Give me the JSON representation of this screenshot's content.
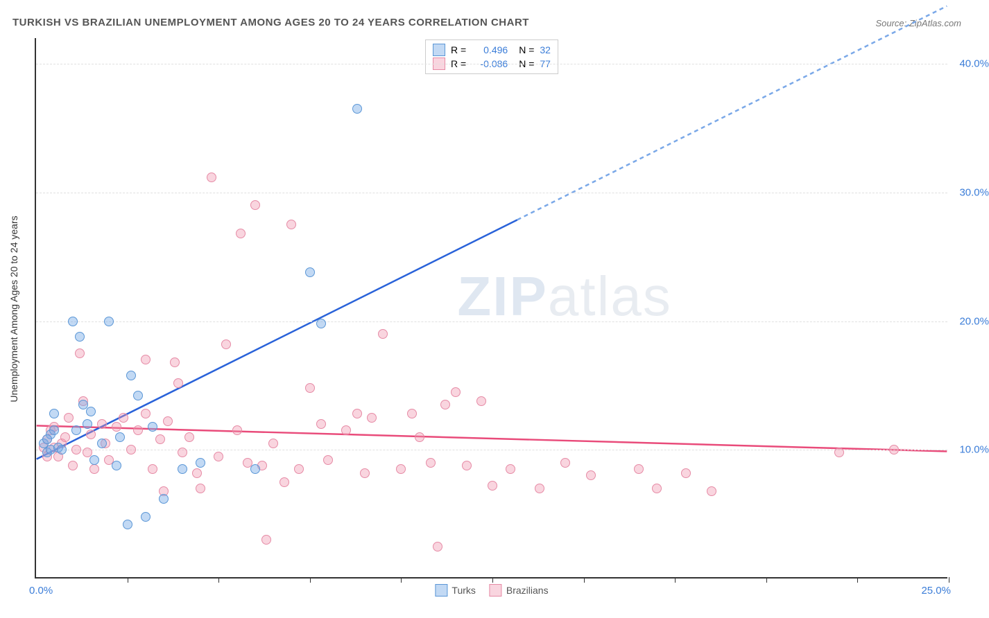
{
  "title": "TURKISH VS BRAZILIAN UNEMPLOYMENT AMONG AGES 20 TO 24 YEARS CORRELATION CHART",
  "source": "Source: ZipAtlas.com",
  "y_axis_title": "Unemployment Among Ages 20 to 24 years",
  "watermark_bold": "ZIP",
  "watermark_light": "atlas",
  "chart": {
    "type": "scatter",
    "background_color": "#ffffff",
    "grid_color": "#e0e0e0",
    "axis_color": "#333333",
    "xlim": [
      0,
      25
    ],
    "ylim": [
      0,
      42
    ],
    "x_ticks": [
      0,
      2.5,
      5,
      7.5,
      10,
      12.5,
      15,
      17.5,
      20,
      22.5,
      25
    ],
    "y_gridlines": [
      10,
      20,
      30,
      40
    ],
    "y_tick_labels": [
      "10.0%",
      "20.0%",
      "30.0%",
      "40.0%"
    ],
    "x_label_min": "0.0%",
    "x_label_max": "25.0%",
    "label_color": "#3b7dd8",
    "label_fontsize": 15
  },
  "series": {
    "turks": {
      "label": "Turks",
      "fill_color": "rgba(120,170,230,0.45)",
      "stroke_color": "#5a96d6",
      "trend_color": "#2962d9",
      "trend_dash_color": "#7aa8e8",
      "R": "0.496",
      "N": "32",
      "trend": {
        "x1": 0,
        "y1": 9.2,
        "x2": 25,
        "y2": 44.5,
        "solid_until_x": 13.2
      },
      "points": [
        [
          0.2,
          10.5
        ],
        [
          0.3,
          9.8
        ],
        [
          0.4,
          11.2
        ],
        [
          0.4,
          10.0
        ],
        [
          0.5,
          12.8
        ],
        [
          0.6,
          10.2
        ],
        [
          1.0,
          20.0
        ],
        [
          1.1,
          11.5
        ],
        [
          1.2,
          18.8
        ],
        [
          1.3,
          13.5
        ],
        [
          1.5,
          13.0
        ],
        [
          1.6,
          9.2
        ],
        [
          1.8,
          10.5
        ],
        [
          2.0,
          20.0
        ],
        [
          2.2,
          8.8
        ],
        [
          2.3,
          11.0
        ],
        [
          2.5,
          4.2
        ],
        [
          2.6,
          15.8
        ],
        [
          2.8,
          14.2
        ],
        [
          3.0,
          4.8
        ],
        [
          3.2,
          11.8
        ],
        [
          3.5,
          6.2
        ],
        [
          4.0,
          8.5
        ],
        [
          4.5,
          9.0
        ],
        [
          6.0,
          8.5
        ],
        [
          7.5,
          23.8
        ],
        [
          7.8,
          19.8
        ],
        [
          8.8,
          36.5
        ],
        [
          0.3,
          10.8
        ],
        [
          0.5,
          11.5
        ],
        [
          0.7,
          10.0
        ],
        [
          1.4,
          12.0
        ]
      ]
    },
    "brazilians": {
      "label": "Brazilians",
      "fill_color": "rgba(240,150,175,0.40)",
      "stroke_color": "#e68aa5",
      "trend_color": "#e94b7a",
      "R": "-0.086",
      "N": "77",
      "trend": {
        "x1": 0,
        "y1": 11.8,
        "x2": 25,
        "y2": 9.8
      },
      "points": [
        [
          0.2,
          10.2
        ],
        [
          0.3,
          10.8
        ],
        [
          0.3,
          9.5
        ],
        [
          0.4,
          11.5
        ],
        [
          0.5,
          10.2
        ],
        [
          0.5,
          11.8
        ],
        [
          0.6,
          9.5
        ],
        [
          0.7,
          10.5
        ],
        [
          0.8,
          11.0
        ],
        [
          0.9,
          12.5
        ],
        [
          1.0,
          8.8
        ],
        [
          1.1,
          10.0
        ],
        [
          1.2,
          17.5
        ],
        [
          1.3,
          13.8
        ],
        [
          1.4,
          9.8
        ],
        [
          1.5,
          11.2
        ],
        [
          1.6,
          8.5
        ],
        [
          1.8,
          12.0
        ],
        [
          1.9,
          10.5
        ],
        [
          2.0,
          9.2
        ],
        [
          2.2,
          11.8
        ],
        [
          2.4,
          12.5
        ],
        [
          2.6,
          10.0
        ],
        [
          2.8,
          11.5
        ],
        [
          3.0,
          17.0
        ],
        [
          3.0,
          12.8
        ],
        [
          3.2,
          8.5
        ],
        [
          3.4,
          10.8
        ],
        [
          3.5,
          6.8
        ],
        [
          3.6,
          12.2
        ],
        [
          3.8,
          16.8
        ],
        [
          3.9,
          15.2
        ],
        [
          4.0,
          9.8
        ],
        [
          4.2,
          11.0
        ],
        [
          4.4,
          8.2
        ],
        [
          4.5,
          7.0
        ],
        [
          4.8,
          31.2
        ],
        [
          5.0,
          9.5
        ],
        [
          5.2,
          18.2
        ],
        [
          5.5,
          11.5
        ],
        [
          5.6,
          26.8
        ],
        [
          5.8,
          9.0
        ],
        [
          6.0,
          29.0
        ],
        [
          6.2,
          8.8
        ],
        [
          6.3,
          3.0
        ],
        [
          6.5,
          10.5
        ],
        [
          6.8,
          7.5
        ],
        [
          7.0,
          27.5
        ],
        [
          7.2,
          8.5
        ],
        [
          7.5,
          14.8
        ],
        [
          7.8,
          12.0
        ],
        [
          8.0,
          9.2
        ],
        [
          8.5,
          11.5
        ],
        [
          8.8,
          12.8
        ],
        [
          9.0,
          8.2
        ],
        [
          9.2,
          12.5
        ],
        [
          9.5,
          19.0
        ],
        [
          10.0,
          8.5
        ],
        [
          10.3,
          12.8
        ],
        [
          10.5,
          11.0
        ],
        [
          10.8,
          9.0
        ],
        [
          11.0,
          2.5
        ],
        [
          11.2,
          13.5
        ],
        [
          11.5,
          14.5
        ],
        [
          11.8,
          8.8
        ],
        [
          12.2,
          13.8
        ],
        [
          12.5,
          7.2
        ],
        [
          13.0,
          8.5
        ],
        [
          13.8,
          7.0
        ],
        [
          14.5,
          9.0
        ],
        [
          15.2,
          8.0
        ],
        [
          16.5,
          8.5
        ],
        [
          17.0,
          7.0
        ],
        [
          17.8,
          8.2
        ],
        [
          18.5,
          6.8
        ],
        [
          22.0,
          9.8
        ],
        [
          23.5,
          10.0
        ]
      ]
    }
  },
  "legend_top": {
    "r_label": "R =",
    "n_label": "N ="
  }
}
